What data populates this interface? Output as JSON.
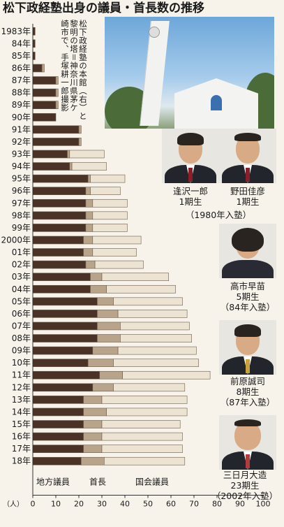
{
  "title": "松下政経塾出身の議員・首長数の推移",
  "photo_caption": [
    "松下政経塾の本館（右）と",
    "黎明の塔＝神奈川県茅ケ",
    "崎市で、手塚耕一郎撮影"
  ],
  "people": [
    {
      "name": "逢沢一郎",
      "term": "1期生",
      "note": ""
    },
    {
      "name": "野田佳彦",
      "term": "1期生",
      "note": ""
    },
    {
      "name": "",
      "term": "",
      "note": "（1980年入塾）"
    },
    {
      "name": "高市早苗",
      "term": "5期生",
      "note": "（84年入塾）"
    },
    {
      "name": "前原誠司",
      "term": "8期生",
      "note": "（87年入塾）"
    },
    {
      "name": "三日月大造",
      "term": "23期生",
      "note": "（2002年入塾）"
    }
  ],
  "colors": {
    "local": "#4a3326",
    "head": "#b8a48a",
    "national": "#ece3d3",
    "background": "#f7f3ea"
  },
  "chart_data": {
    "type": "bar",
    "orientation": "horizontal",
    "stacked": true,
    "categories": [
      "1983年",
      "84年",
      "85年",
      "86年",
      "87年",
      "88年",
      "89年",
      "90年",
      "91年",
      "92年",
      "93年",
      "94年",
      "95年",
      "96年",
      "97年",
      "98年",
      "99年",
      "2000年",
      "01年",
      "02年",
      "03年",
      "04年",
      "05年",
      "06年",
      "07年",
      "08年",
      "09年",
      "10年",
      "11年",
      "12年",
      "13年",
      "14年",
      "15年",
      "16年",
      "17年",
      "18年"
    ],
    "series": [
      {
        "name": "地方議員",
        "values": [
          1,
          1,
          1,
          4,
          10,
          10,
          10,
          10,
          20,
          20,
          15,
          16,
          24,
          23,
          23,
          23,
          23,
          22,
          22,
          23,
          25,
          25,
          28,
          28,
          28,
          28,
          26,
          24,
          29,
          26,
          22,
          22,
          22,
          22,
          22,
          21
        ]
      },
      {
        "name": "首長",
        "values": [
          0,
          0,
          0,
          1,
          1,
          1,
          1,
          0,
          1,
          1,
          1,
          1,
          1,
          2,
          3,
          3,
          3,
          4,
          4,
          4,
          5,
          7,
          7,
          9,
          10,
          10,
          11,
          11,
          10,
          9,
          8,
          10,
          8,
          8,
          8,
          10
        ]
      },
      {
        "name": "国会議員",
        "values": [
          0,
          0,
          0,
          0,
          0,
          0,
          0,
          0,
          0,
          0,
          15,
          15,
          15,
          13,
          15,
          15,
          15,
          21,
          19,
          21,
          29,
          30,
          30,
          30,
          30,
          31,
          34,
          37,
          38,
          31,
          37,
          35,
          34,
          35,
          35,
          35
        ]
      }
    ],
    "xlabel": "（人）",
    "xlim": [
      0,
      100
    ],
    "xticks": [
      0,
      10,
      20,
      30,
      40,
      50,
      60,
      70,
      80,
      90,
      100
    ],
    "legend": "bottom"
  }
}
